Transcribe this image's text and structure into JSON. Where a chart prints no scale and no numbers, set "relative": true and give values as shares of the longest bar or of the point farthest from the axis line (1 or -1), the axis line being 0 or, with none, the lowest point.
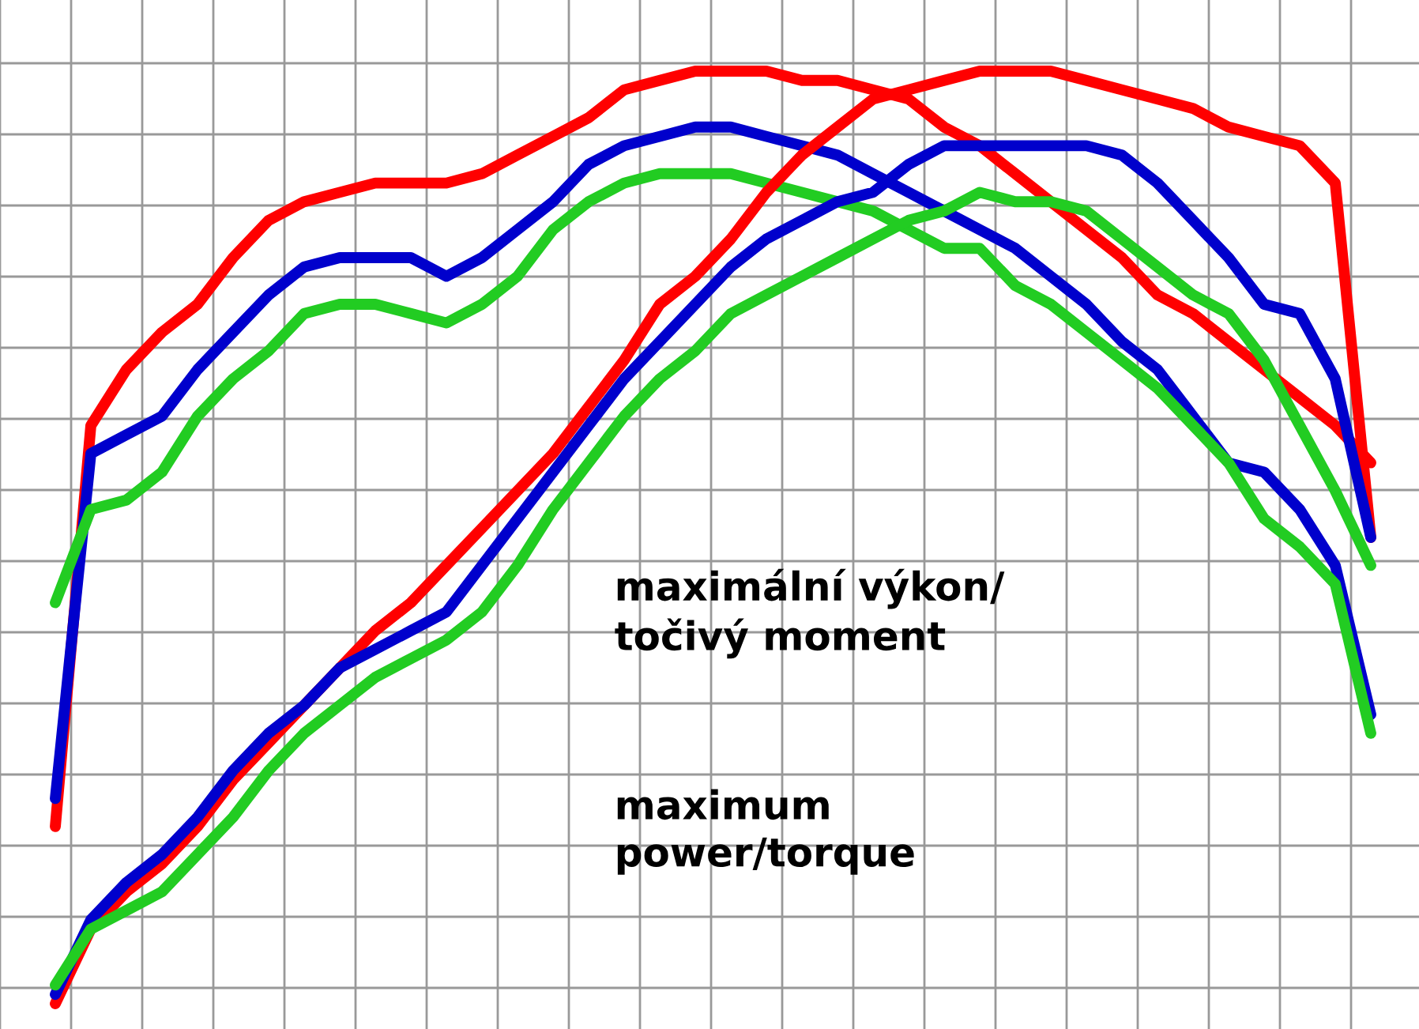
{
  "chart_data": {
    "type": "line",
    "relative": true,
    "grid": true,
    "legend": false,
    "marker": "none",
    "line_style": "solid",
    "categories": [
      null,
      null,
      null,
      null,
      null,
      null,
      null,
      null,
      null,
      null,
      null,
      null,
      null,
      null,
      null,
      null,
      null,
      null,
      null,
      null,
      null,
      null,
      null,
      null,
      null,
      null,
      null,
      null,
      null,
      null,
      null,
      null,
      null,
      null,
      null,
      null,
      null,
      null
    ],
    "series": [
      {
        "color": "#ff0000",
        "values": [
          0.19,
          0.62,
          0.68,
          0.72,
          0.75,
          0.8,
          0.84,
          0.86,
          0.87,
          0.88,
          0.88,
          0.88,
          0.89,
          0.91,
          0.93,
          0.95,
          0.98,
          0.99,
          1.0,
          1.0,
          1.0,
          0.99,
          0.99,
          0.98,
          0.97,
          0.94,
          0.92,
          0.89,
          0.86,
          0.83,
          0.8,
          0.76,
          0.74,
          0.71,
          0.68,
          0.65,
          0.62,
          0.58
        ]
      },
      {
        "color": "#0000cc",
        "values": [
          0.22,
          0.59,
          0.61,
          0.63,
          0.68,
          0.72,
          0.76,
          0.79,
          0.8,
          0.8,
          0.8,
          0.78,
          0.8,
          0.83,
          0.86,
          0.9,
          0.92,
          0.93,
          0.94,
          0.94,
          0.93,
          0.92,
          0.91,
          0.89,
          0.87,
          0.85,
          0.83,
          0.81,
          0.78,
          0.75,
          0.71,
          0.68,
          0.63,
          0.58,
          0.57,
          0.53,
          0.47,
          0.31
        ]
      },
      {
        "color": "#22cc22",
        "values": [
          0.43,
          0.53,
          0.54,
          0.57,
          0.63,
          0.67,
          0.7,
          0.74,
          0.75,
          0.75,
          0.74,
          0.73,
          0.75,
          0.78,
          0.83,
          0.86,
          0.88,
          0.89,
          0.89,
          0.89,
          0.88,
          0.87,
          0.86,
          0.85,
          0.83,
          0.81,
          0.81,
          0.77,
          0.75,
          0.72,
          0.69,
          0.66,
          0.62,
          0.58,
          0.52,
          0.49,
          0.45,
          0.29
        ]
      },
      {
        "color": "#ff0000",
        "values": [
          0,
          0.08,
          0.12,
          0.15,
          0.19,
          0.24,
          0.28,
          0.32,
          0.36,
          0.4,
          0.43,
          0.47,
          0.51,
          0.55,
          0.59,
          0.64,
          0.69,
          0.75,
          0.78,
          0.82,
          0.87,
          0.91,
          0.94,
          0.97,
          0.98,
          0.99,
          1.0,
          1.0,
          1.0,
          0.99,
          0.98,
          0.97,
          0.96,
          0.94,
          0.93,
          0.92,
          0.88,
          0.5
        ]
      },
      {
        "color": "#0000cc",
        "values": [
          0.01,
          0.09,
          0.13,
          0.16,
          0.2,
          0.25,
          0.29,
          0.32,
          0.36,
          0.38,
          0.4,
          0.42,
          0.47,
          0.52,
          0.57,
          0.62,
          0.67,
          0.71,
          0.75,
          0.79,
          0.82,
          0.84,
          0.86,
          0.87,
          0.9,
          0.92,
          0.92,
          0.92,
          0.92,
          0.92,
          0.91,
          0.88,
          0.84,
          0.8,
          0.75,
          0.74,
          0.67,
          0.5
        ]
      },
      {
        "color": "#22cc22",
        "values": [
          0.02,
          0.08,
          0.1,
          0.12,
          0.16,
          0.2,
          0.25,
          0.29,
          0.32,
          0.35,
          0.37,
          0.39,
          0.42,
          0.47,
          0.53,
          0.58,
          0.63,
          0.67,
          0.7,
          0.74,
          0.76,
          0.78,
          0.8,
          0.82,
          0.84,
          0.85,
          0.87,
          0.86,
          0.86,
          0.85,
          0.82,
          0.79,
          0.76,
          0.74,
          0.69,
          0.62,
          0.55,
          0.47
        ]
      }
    ],
    "annotations": [
      "maximální výkon/\ntočivý moment",
      "maximum\npower/torque"
    ]
  }
}
